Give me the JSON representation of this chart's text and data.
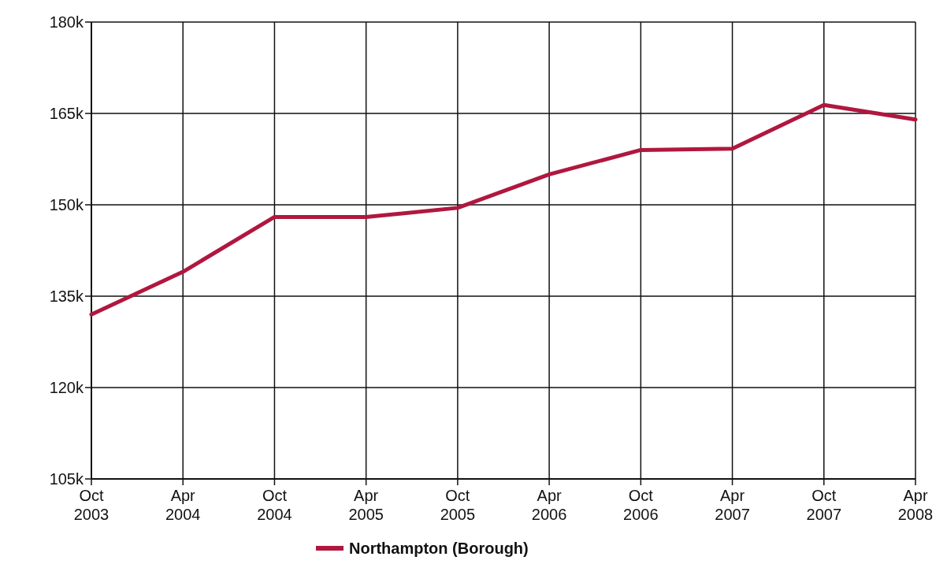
{
  "chart_data": {
    "type": "line",
    "categories": [
      "Oct 2003",
      "Apr 2004",
      "Oct 2004",
      "Apr 2005",
      "Oct 2005",
      "Apr 2006",
      "Oct 2006",
      "Apr 2007",
      "Oct 2007",
      "Apr 2008"
    ],
    "series": [
      {
        "name": "Northampton (Borough)",
        "color": "#b0173f",
        "values": [
          132,
          139,
          148,
          148,
          149.5,
          155,
          159,
          159.2,
          166.4,
          164
        ]
      }
    ],
    "ylim": [
      105,
      180
    ],
    "yticks": [
      {
        "value": 105,
        "label": "105k"
      },
      {
        "value": 120,
        "label": "120k"
      },
      {
        "value": 135,
        "label": "135k"
      },
      {
        "value": 150,
        "label": "150k"
      },
      {
        "value": 165,
        "label": "165k"
      },
      {
        "value": 180,
        "label": "180k"
      }
    ],
    "grid": true,
    "legend": "bottom",
    "marker": "none",
    "line_style": "solid"
  }
}
